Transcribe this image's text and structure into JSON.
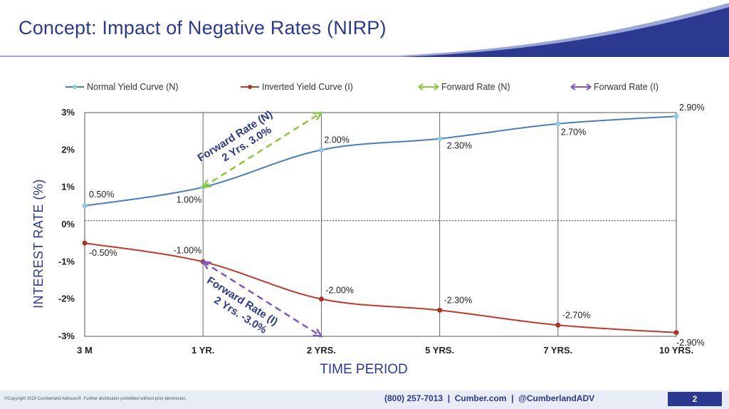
{
  "slide": {
    "title": "Concept: Impact of Negative Rates (NIRP)",
    "accent_color": "#2b3990"
  },
  "chart_data": {
    "type": "line",
    "categories": [
      "3 M",
      "1 YR.",
      "2 YRS.",
      "5 YRS.",
      "7 YRS.",
      "10 YRS."
    ],
    "xlabel": "TIME PERIOD",
    "ylabel": "INTEREST RATE  (%)",
    "ylim": [
      -3,
      3
    ],
    "yticks": [
      "3%",
      "2%",
      "1%",
      "0%",
      "-1%",
      "-2%",
      "-3%"
    ],
    "grid": "vertical lines at each category, dotted zero line",
    "series": [
      {
        "name": "Normal Yield Curve (N)",
        "color": "#4a7ebb",
        "marker_color": "#8ecae6",
        "values": [
          0.5,
          1.0,
          2.0,
          2.3,
          2.7,
          2.9
        ],
        "labels": [
          "0.50%",
          "1.00%",
          "2.00%",
          "2.30%",
          "2.70%",
          "2.90%"
        ]
      },
      {
        "name": "Inverted Yield Curve (I)",
        "color": "#c0392b",
        "marker_color": "#a93226",
        "values": [
          -0.5,
          -1.0,
          -2.0,
          -2.3,
          -2.7,
          -2.9
        ],
        "labels": [
          "-0.50%",
          "-1.00%",
          "-2.00%",
          "-2.30%",
          "-2.70%",
          "-2.90%"
        ]
      }
    ],
    "legend_extra": [
      {
        "name": "Forward Rate (N)",
        "color": "#8dc63f"
      },
      {
        "name": "Forward Rate (I)",
        "color": "#7e57c2"
      }
    ],
    "annotations": [
      {
        "line1": "Forward Rate (N)",
        "line2": "2 Yrs. 3.0%",
        "color": "#2b3990",
        "arrow_color": "#8dc63f",
        "from": {
          "x": 1,
          "y": 1.0
        },
        "to": {
          "x": 2,
          "y": 3.0
        }
      },
      {
        "line1": "Forward Rate (I)",
        "line2": "2 Yrs. -3.0%",
        "color": "#2b3990",
        "arrow_color": "#7e57c2",
        "from": {
          "x": 1,
          "y": -1.0
        },
        "to": {
          "x": 2,
          "y": -3.0
        }
      }
    ]
  },
  "footer": {
    "copyright": "©Copyright 2020 Cumberland Advisors®. Further distribution prohibited without prior permission.",
    "contact": "(800) 257-7013  |  Cumber.com  |  @CumberlandADV",
    "page": "2"
  }
}
